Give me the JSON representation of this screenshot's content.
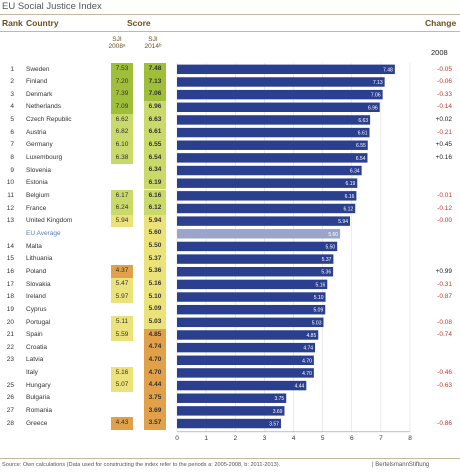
{
  "title": "EU Social Justice Index",
  "headers": {
    "rank": "Rank",
    "country": "Country",
    "score": "Score",
    "change": "Change",
    "sji2008": "SJI 2008ᵃ",
    "sji2014": "SJI 2014ᵇ",
    "year2008": "2008"
  },
  "colors": {
    "bar": "#2b3f8f",
    "bar_avg": "#9aa6c9",
    "green_dark": "#9fbf3b",
    "green_light": "#c9d96a",
    "yellow": "#ece27a",
    "orange": "#e0a14a",
    "change_neg": "#c0392b",
    "change_pos": "#222222"
  },
  "chart_data": {
    "type": "bar",
    "title": "EU Social Justice Index",
    "xlim": [
      0,
      8
    ],
    "xticks": [
      "0",
      "1",
      "2",
      "3",
      "4",
      "5",
      "6",
      "7",
      "8"
    ],
    "rows": [
      {
        "rank": "1",
        "country": "Sweden",
        "sji2008": "7.53",
        "sji2014": "7.48",
        "value": 7.48,
        "change": "-0.05",
        "c08": "green_dark",
        "c14": "green_dark"
      },
      {
        "rank": "2",
        "country": "Finland",
        "sji2008": "7.20",
        "sji2014": "7.13",
        "value": 7.13,
        "change": "-0.06",
        "c08": "green_dark",
        "c14": "green_dark"
      },
      {
        "rank": "3",
        "country": "Denmark",
        "sji2008": "7.39",
        "sji2014": "7.06",
        "value": 7.06,
        "change": "-0.33",
        "c08": "green_dark",
        "c14": "green_dark"
      },
      {
        "rank": "4",
        "country": "Netherlands",
        "sji2008": "7.09",
        "sji2014": "6.96",
        "value": 6.96,
        "change": "-0.14",
        "c08": "green_dark",
        "c14": "green_light"
      },
      {
        "rank": "5",
        "country": "Czech Republic",
        "sji2008": "6.62",
        "sji2014": "6.63",
        "value": 6.63,
        "change": "+0.02",
        "c08": "green_light",
        "c14": "green_light"
      },
      {
        "rank": "6",
        "country": "Austria",
        "sji2008": "6.82",
        "sji2014": "6.61",
        "value": 6.61,
        "change": "-0.21",
        "c08": "green_light",
        "c14": "green_light"
      },
      {
        "rank": "7",
        "country": "Germany",
        "sji2008": "6.10",
        "sji2014": "6.55",
        "value": 6.55,
        "change": "+0.45",
        "c08": "green_light",
        "c14": "green_light"
      },
      {
        "rank": "8",
        "country": "Luxembourg",
        "sji2008": "6.38",
        "sji2014": "6.54",
        "value": 6.54,
        "change": "+0.16",
        "c08": "green_light",
        "c14": "green_light"
      },
      {
        "rank": "9",
        "country": "Slovenia",
        "sji2008": "",
        "sji2014": "6.34",
        "value": 6.34,
        "change": "",
        "c08": "",
        "c14": "green_light"
      },
      {
        "rank": "10",
        "country": "Estonia",
        "sji2008": "",
        "sji2014": "6.19",
        "value": 6.19,
        "change": "",
        "c08": "",
        "c14": "green_light"
      },
      {
        "rank": "11",
        "country": "Belgium",
        "sji2008": "6.17",
        "sji2014": "6.16",
        "value": 6.16,
        "change": "-0.01",
        "c08": "green_light",
        "c14": "green_light"
      },
      {
        "rank": "12",
        "country": "France",
        "sji2008": "6.24",
        "sji2014": "6.12",
        "value": 6.12,
        "change": "-0.12",
        "c08": "green_light",
        "c14": "green_light"
      },
      {
        "rank": "13",
        "country": "United Kingdom",
        "sji2008": "5.94",
        "sji2014": "5.94",
        "value": 5.94,
        "change": "-0.00",
        "c08": "yellow",
        "c14": "yellow"
      },
      {
        "rank": "",
        "country": "EU Average",
        "sji2008": "",
        "sji2014": "5.60",
        "value": 5.6,
        "change": "",
        "c08": "",
        "c14": "yellow",
        "avg": true
      },
      {
        "rank": "14",
        "country": "Malta",
        "sji2008": "",
        "sji2014": "5.50",
        "value": 5.5,
        "change": "",
        "c08": "",
        "c14": "yellow"
      },
      {
        "rank": "15",
        "country": "Lithuania",
        "sji2008": "",
        "sji2014": "5.37",
        "value": 5.37,
        "change": "",
        "c08": "",
        "c14": "yellow"
      },
      {
        "rank": "16",
        "country": "Poland",
        "sji2008": "4.37",
        "sji2014": "5.36",
        "value": 5.36,
        "change": "+0.99",
        "c08": "orange",
        "c14": "yellow"
      },
      {
        "rank": "17",
        "country": "Slovakia",
        "sji2008": "5.47",
        "sji2014": "5.16",
        "value": 5.16,
        "change": "-0.31",
        "c08": "yellow",
        "c14": "yellow"
      },
      {
        "rank": "18",
        "country": "Ireland",
        "sji2008": "5.97",
        "sji2014": "5.10",
        "value": 5.1,
        "change": "-0.87",
        "c08": "yellow",
        "c14": "yellow"
      },
      {
        "rank": "19",
        "country": "Cyprus",
        "sji2008": "",
        "sji2014": "5.09",
        "value": 5.09,
        "change": "",
        "c08": "",
        "c14": "yellow"
      },
      {
        "rank": "20",
        "country": "Portugal",
        "sji2008": "5.11",
        "sji2014": "5.03",
        "value": 5.03,
        "change": "-0.08",
        "c08": "yellow",
        "c14": "yellow"
      },
      {
        "rank": "21",
        "country": "Spain",
        "sji2008": "5.59",
        "sji2014": "4.85",
        "value": 4.85,
        "change": "-0.74",
        "c08": "yellow",
        "c14": "orange"
      },
      {
        "rank": "22",
        "country": "Croatia",
        "sji2008": "",
        "sji2014": "4.74",
        "value": 4.74,
        "change": "",
        "c08": "",
        "c14": "orange"
      },
      {
        "rank": "23",
        "country": "Latvia",
        "sji2008": "",
        "sji2014": "4.70",
        "value": 4.7,
        "change": "",
        "c08": "",
        "c14": "orange"
      },
      {
        "rank": "",
        "country": "Italy",
        "sji2008": "5.16",
        "sji2014": "4.70",
        "value": 4.7,
        "change": "-0.46",
        "c08": "yellow",
        "c14": "orange"
      },
      {
        "rank": "25",
        "country": "Hungary",
        "sji2008": "5.07",
        "sji2014": "4.44",
        "value": 4.44,
        "change": "-0.63",
        "c08": "yellow",
        "c14": "orange"
      },
      {
        "rank": "26",
        "country": "Bulgaria",
        "sji2008": "",
        "sji2014": "3.75",
        "value": 3.75,
        "change": "",
        "c08": "",
        "c14": "orange"
      },
      {
        "rank": "27",
        "country": "Romania",
        "sji2008": "",
        "sji2014": "3.69",
        "value": 3.69,
        "change": "",
        "c08": "",
        "c14": "orange"
      },
      {
        "rank": "28",
        "country": "Greece",
        "sji2008": "4.43",
        "sji2014": "3.57",
        "value": 3.57,
        "change": "-0.86",
        "c08": "orange",
        "c14": "orange"
      }
    ]
  },
  "source": "Source: Own calculations (Data used for constructing the index refer to the periods a: 2005-2008, b: 2011-2013).",
  "brand": "| BertelsmannStiftung"
}
